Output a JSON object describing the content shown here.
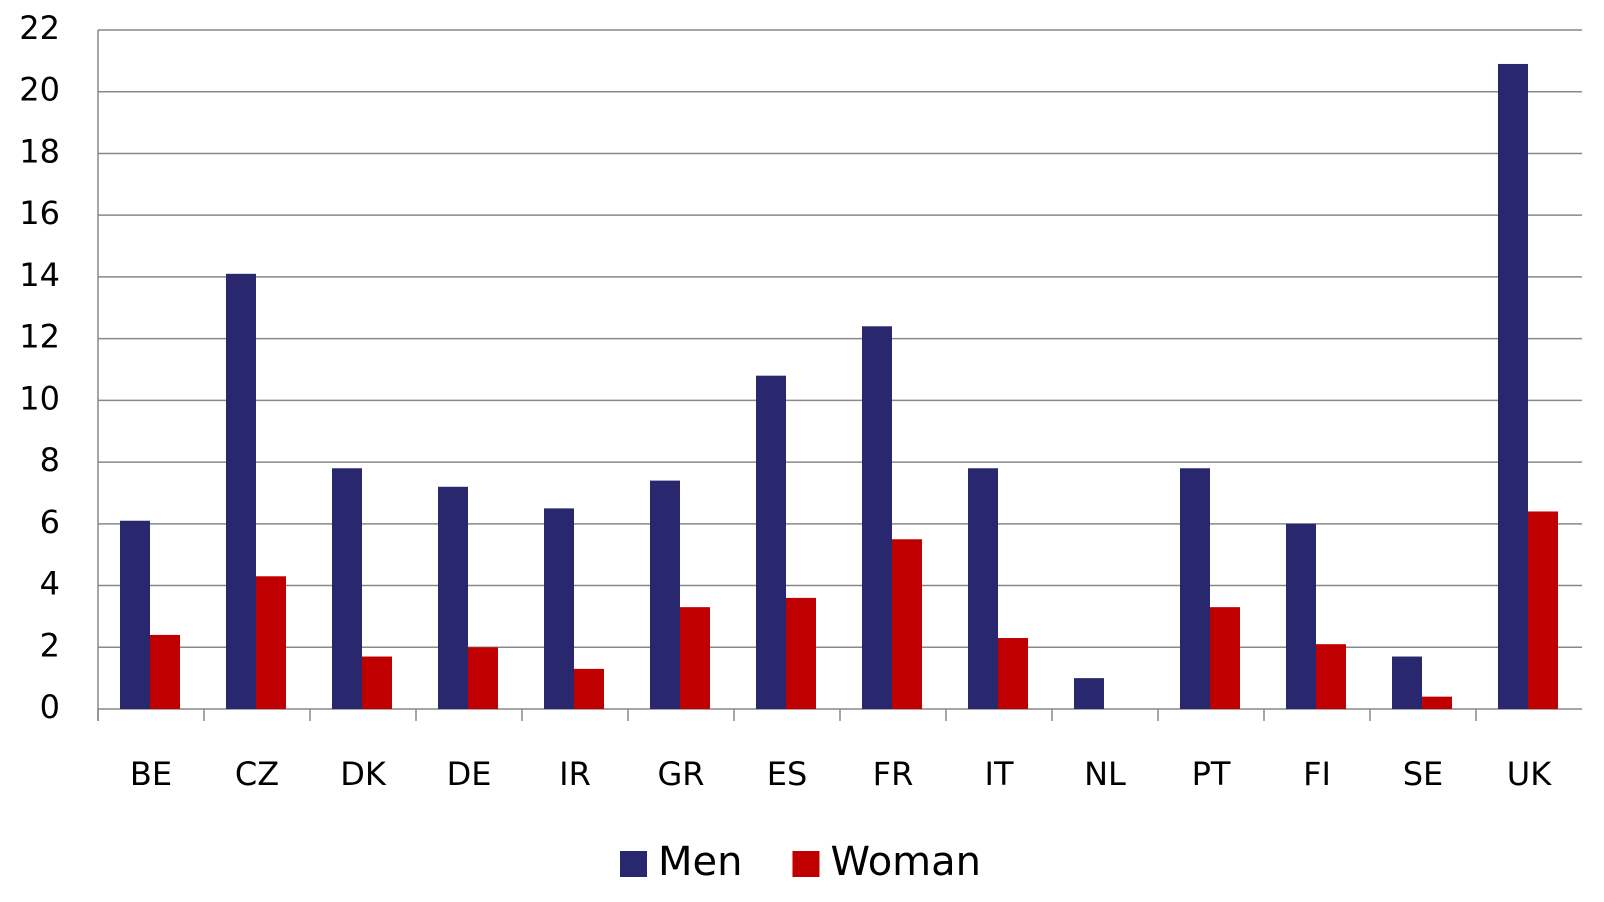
{
  "chart_data": {
    "type": "bar",
    "categories": [
      "BE",
      "CZ",
      "DK",
      "DE",
      "IR",
      "GR",
      "ES",
      "FR",
      "IT",
      "NL",
      "PT",
      "FI",
      "SE",
      "UK"
    ],
    "series": [
      {
        "name": "Men",
        "color": "#29286f",
        "values": [
          6.1,
          14.1,
          7.8,
          7.2,
          6.5,
          7.4,
          10.8,
          12.4,
          7.8,
          1.0,
          7.8,
          6.0,
          1.7,
          20.9
        ]
      },
      {
        "name": "Woman",
        "color": "#c00000",
        "values": [
          2.4,
          4.3,
          1.7,
          2.0,
          1.3,
          3.3,
          3.6,
          5.5,
          2.3,
          0,
          3.3,
          2.1,
          0.4,
          6.4
        ]
      }
    ],
    "ylim": [
      0,
      22
    ],
    "yticks": [
      0,
      2,
      4,
      6,
      8,
      10,
      12,
      14,
      16,
      18,
      20,
      22
    ],
    "grid": true,
    "legend": "bottom"
  }
}
